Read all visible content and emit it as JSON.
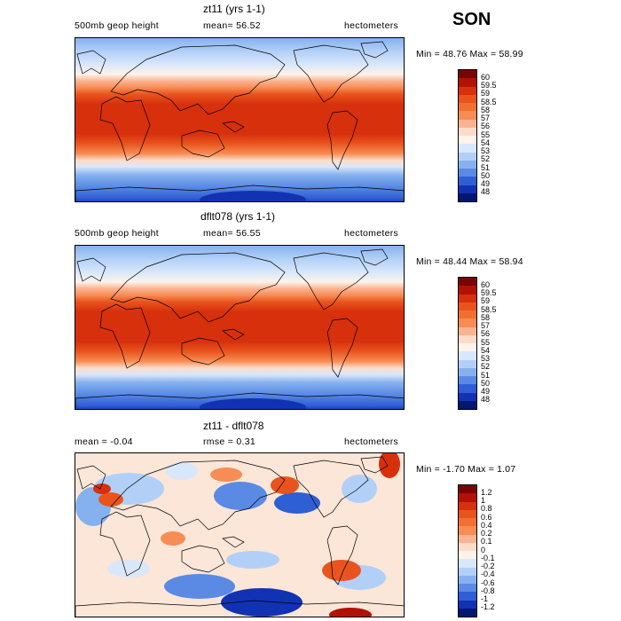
{
  "season": "SON",
  "panels": [
    {
      "title": "zt11 (yrs 1-1)",
      "left_label": "500mb geop height",
      "mid_label": "mean=  56.52",
      "right_label": "hectometers",
      "minmax": "Min =  48.76 Max =  58.99",
      "kind": "field",
      "colorbar": {
        "labels": [
          "60",
          "59.5",
          "59",
          "58.5",
          "58",
          "57",
          "56",
          "55",
          "54",
          "53",
          "52",
          "51",
          "50",
          "49",
          "48"
        ],
        "colors": [
          "#7a0403",
          "#b11203",
          "#d7300c",
          "#e9541e",
          "#f26f32",
          "#f78c55",
          "#fbb391",
          "#fcdcc8",
          "#fdf3ea",
          "#d9e7fb",
          "#b2d0f7",
          "#86b1ef",
          "#5a8ae4",
          "#2f5fd4",
          "#1133b3",
          "#021772"
        ]
      }
    },
    {
      "title": "dflt078 (yrs 1-1)",
      "left_label": "500mb geop height",
      "mid_label": "mean=  56.55",
      "right_label": "hectometers",
      "minmax": "Min =  48.44 Max =  58.94",
      "kind": "field",
      "colorbar": {
        "labels": [
          "60",
          "59.5",
          "59",
          "58.5",
          "58",
          "57",
          "56",
          "55",
          "54",
          "53",
          "52",
          "51",
          "50",
          "49",
          "48"
        ],
        "colors": [
          "#7a0403",
          "#b11203",
          "#d7300c",
          "#e9541e",
          "#f26f32",
          "#f78c55",
          "#fbb391",
          "#fcdcc8",
          "#fdf3ea",
          "#d9e7fb",
          "#b2d0f7",
          "#86b1ef",
          "#5a8ae4",
          "#2f5fd4",
          "#1133b3",
          "#021772"
        ]
      }
    },
    {
      "title": "zt11 - dflt078",
      "left_label": "mean =   -0.04",
      "mid_label": "rmse =   0.31",
      "right_label": "hectometers",
      "minmax": "Min =  -1.70 Max =   1.07",
      "kind": "diff",
      "colorbar": {
        "labels": [
          "1.2",
          "1",
          "0.8",
          "0.6",
          "0.4",
          "0.2",
          "0.1",
          "0",
          "-0.1",
          "-0.2",
          "-0.4",
          "-0.6",
          "-0.8",
          "-1",
          "-1.2"
        ],
        "colors": [
          "#7a0403",
          "#b11203",
          "#d7300c",
          "#e9541e",
          "#f26f32",
          "#f78c55",
          "#fbb391",
          "#fcdcc8",
          "#fdf3ea",
          "#d9e7fb",
          "#b2d0f7",
          "#86b1ef",
          "#5a8ae4",
          "#2f5fd4",
          "#1133b3",
          "#021772"
        ]
      }
    }
  ]
}
